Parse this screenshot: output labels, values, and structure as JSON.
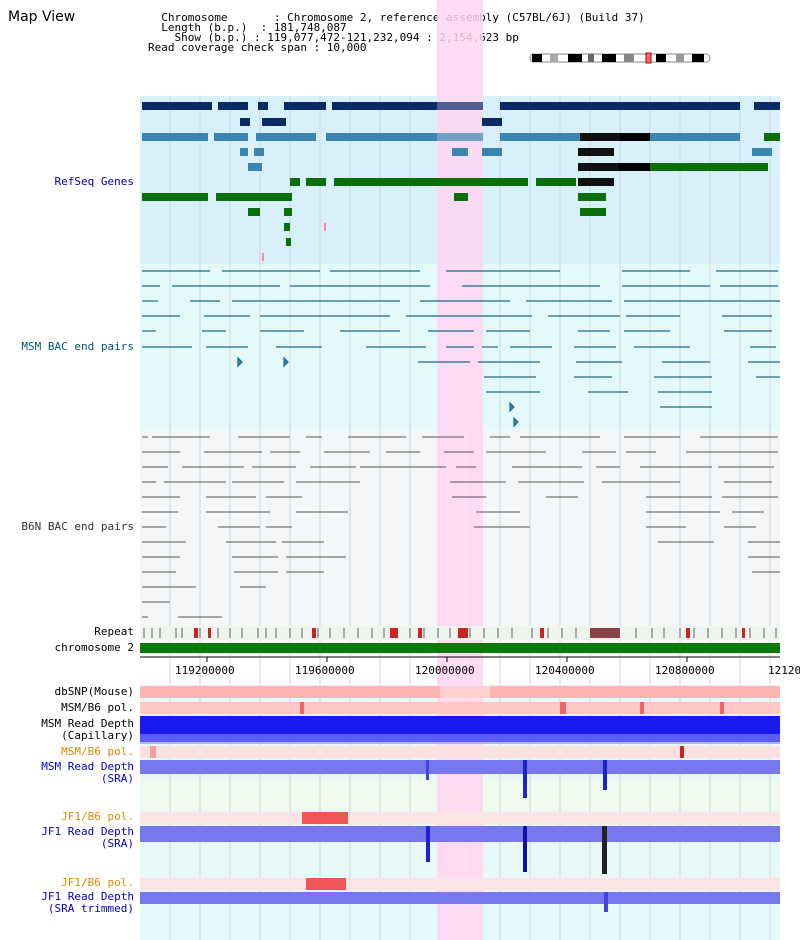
{
  "header": {
    "title": "Map View",
    "lines": [
      "  Chromosome       : Chromosome 2, reference assembly (C57BL/6J) (Build 37)",
      "  Length (b.p.)  : 181,748,087",
      "    Show (b.p.) : 119,077,472-121,232,094 : 2,154,623 bp",
      "Read coverage check span : 10,000"
    ]
  },
  "tracks": {
    "refseq": "RefSeq Genes",
    "msm_bac": "MSM BAC end pairs",
    "b6n_bac": "B6N BAC end pairs",
    "repeat": "Repeat",
    "chromosome": "chromosome 2",
    "dbsnp": "dbSNP(Mouse)",
    "msm_b6_pol": "MSM/B6 pol.",
    "msm_depth_cap_1": "MSM Read Depth",
    "msm_depth_cap_2": "(Capillary)",
    "msm_b6_pol2": "MSM/B6 pol.",
    "msm_depth_sra_1": "MSM Read Depth",
    "msm_depth_sra_2": "(SRA)",
    "jf1_pol": "JF1/B6 pol.",
    "jf1_depth_1": "JF1 Read Depth",
    "jf1_depth_2": "(SRA)",
    "jf1_pol2": "JF1/B6 pol.",
    "jf1_trim_1": "JF1 Read Depth",
    "jf1_trim_2": "(SRA trimmed)"
  },
  "axis": {
    "ticks": [
      "119200000",
      "119600000",
      "120000000",
      "120400000",
      "120800000",
      "12120"
    ]
  },
  "colors": {
    "highlight": "#ffd6f2",
    "refseq_bg": "#d8f0fa",
    "msm_bg": "#e4fafa",
    "b6n_bg": "#f4f6f8",
    "gene_dark": "#0a2a66",
    "gene_mid": "#3a86b0",
    "gene_green": "#0a6e0a",
    "bac": "#1a6a8a",
    "chrom": "#0a7a0a"
  }
}
